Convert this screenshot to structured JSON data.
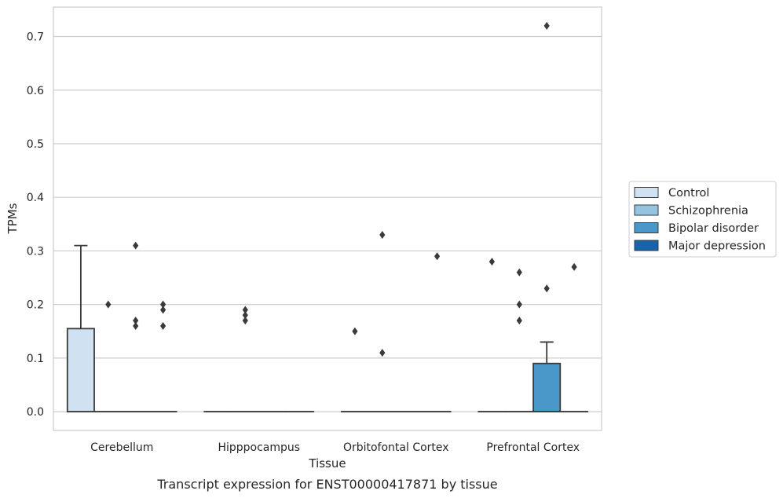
{
  "chart_data": {
    "type": "box",
    "title": "",
    "caption": "Transcript expression for ENST00000417871 by tissue",
    "xlabel": "Tissue",
    "ylabel": "TPMs",
    "ylim": [
      -0.035,
      0.755
    ],
    "yticks": [
      "0.0",
      "0.1",
      "0.2",
      "0.3",
      "0.4",
      "0.5",
      "0.6",
      "0.7"
    ],
    "grid": true,
    "legend_position": "right",
    "categories": [
      "Cerebellum",
      "Hipppocampus",
      "Orbitofontal Cortex",
      "Prefrontal Cortex"
    ],
    "series": [
      {
        "name": "Control",
        "color": "#d0e1f2",
        "boxes": [
          {
            "category": "Cerebellum",
            "q1": 0.0,
            "median": 0.0,
            "q3": 0.155,
            "whisker_low": 0.0,
            "whisker_high": 0.31,
            "outliers": []
          },
          {
            "category": "Hipppocampus",
            "q1": 0.0,
            "median": 0.0,
            "q3": 0.0,
            "whisker_low": 0.0,
            "whisker_high": 0.0,
            "outliers": []
          },
          {
            "category": "Orbitofontal Cortex",
            "q1": 0.0,
            "median": 0.0,
            "q3": 0.0,
            "whisker_low": 0.0,
            "whisker_high": 0.0,
            "outliers": [
              0.15
            ]
          },
          {
            "category": "Prefrontal Cortex",
            "q1": 0.0,
            "median": 0.0,
            "q3": 0.0,
            "whisker_low": 0.0,
            "whisker_high": 0.0,
            "outliers": [
              0.28
            ]
          }
        ]
      },
      {
        "name": "Schizophrenia",
        "color": "#94c4df",
        "boxes": [
          {
            "category": "Cerebellum",
            "q1": 0.0,
            "median": 0.0,
            "q3": 0.0,
            "whisker_low": 0.0,
            "whisker_high": 0.0,
            "outliers": [
              0.2
            ]
          },
          {
            "category": "Hipppocampus",
            "q1": 0.0,
            "median": 0.0,
            "q3": 0.0,
            "whisker_low": 0.0,
            "whisker_high": 0.0,
            "outliers": [
              0.17,
              0.18,
              0.19
            ]
          },
          {
            "category": "Orbitofontal Cortex",
            "q1": 0.0,
            "median": 0.0,
            "q3": 0.0,
            "whisker_low": 0.0,
            "whisker_high": 0.0,
            "outliers": [
              0.11,
              0.33
            ]
          },
          {
            "category": "Prefrontal Cortex",
            "q1": 0.0,
            "median": 0.0,
            "q3": 0.0,
            "whisker_low": 0.0,
            "whisker_high": 0.0,
            "outliers": [
              0.17,
              0.2,
              0.26
            ]
          }
        ]
      },
      {
        "name": "Bipolar disorder",
        "color": "#4a98c9",
        "boxes": [
          {
            "category": "Cerebellum",
            "q1": 0.0,
            "median": 0.0,
            "q3": 0.0,
            "whisker_low": 0.0,
            "whisker_high": 0.0,
            "outliers": [
              0.16,
              0.17,
              0.31
            ]
          },
          {
            "category": "Hipppocampus",
            "q1": 0.0,
            "median": 0.0,
            "q3": 0.0,
            "whisker_low": 0.0,
            "whisker_high": 0.0,
            "outliers": []
          },
          {
            "category": "Orbitofontal Cortex",
            "q1": 0.0,
            "median": 0.0,
            "q3": 0.0,
            "whisker_low": 0.0,
            "whisker_high": 0.0,
            "outliers": []
          },
          {
            "category": "Prefrontal Cortex",
            "q1": 0.0,
            "median": 0.0,
            "q3": 0.09,
            "whisker_low": 0.0,
            "whisker_high": 0.13,
            "outliers": [
              0.23,
              0.72
            ]
          }
        ]
      },
      {
        "name": "Major depression",
        "color": "#1764ab",
        "boxes": [
          {
            "category": "Cerebellum",
            "q1": 0.0,
            "median": 0.0,
            "q3": 0.0,
            "whisker_low": 0.0,
            "whisker_high": 0.0,
            "outliers": [
              0.16,
              0.19,
              0.2
            ]
          },
          {
            "category": "Hipppocampus",
            "q1": 0.0,
            "median": 0.0,
            "q3": 0.0,
            "whisker_low": 0.0,
            "whisker_high": 0.0,
            "outliers": []
          },
          {
            "category": "Orbitofontal Cortex",
            "q1": 0.0,
            "median": 0.0,
            "q3": 0.0,
            "whisker_low": 0.0,
            "whisker_high": 0.0,
            "outliers": [
              0.29
            ]
          },
          {
            "category": "Prefrontal Cortex",
            "q1": 0.0,
            "median": 0.0,
            "q3": 0.0,
            "whisker_low": 0.0,
            "whisker_high": 0.0,
            "outliers": [
              0.27
            ]
          }
        ]
      }
    ]
  }
}
